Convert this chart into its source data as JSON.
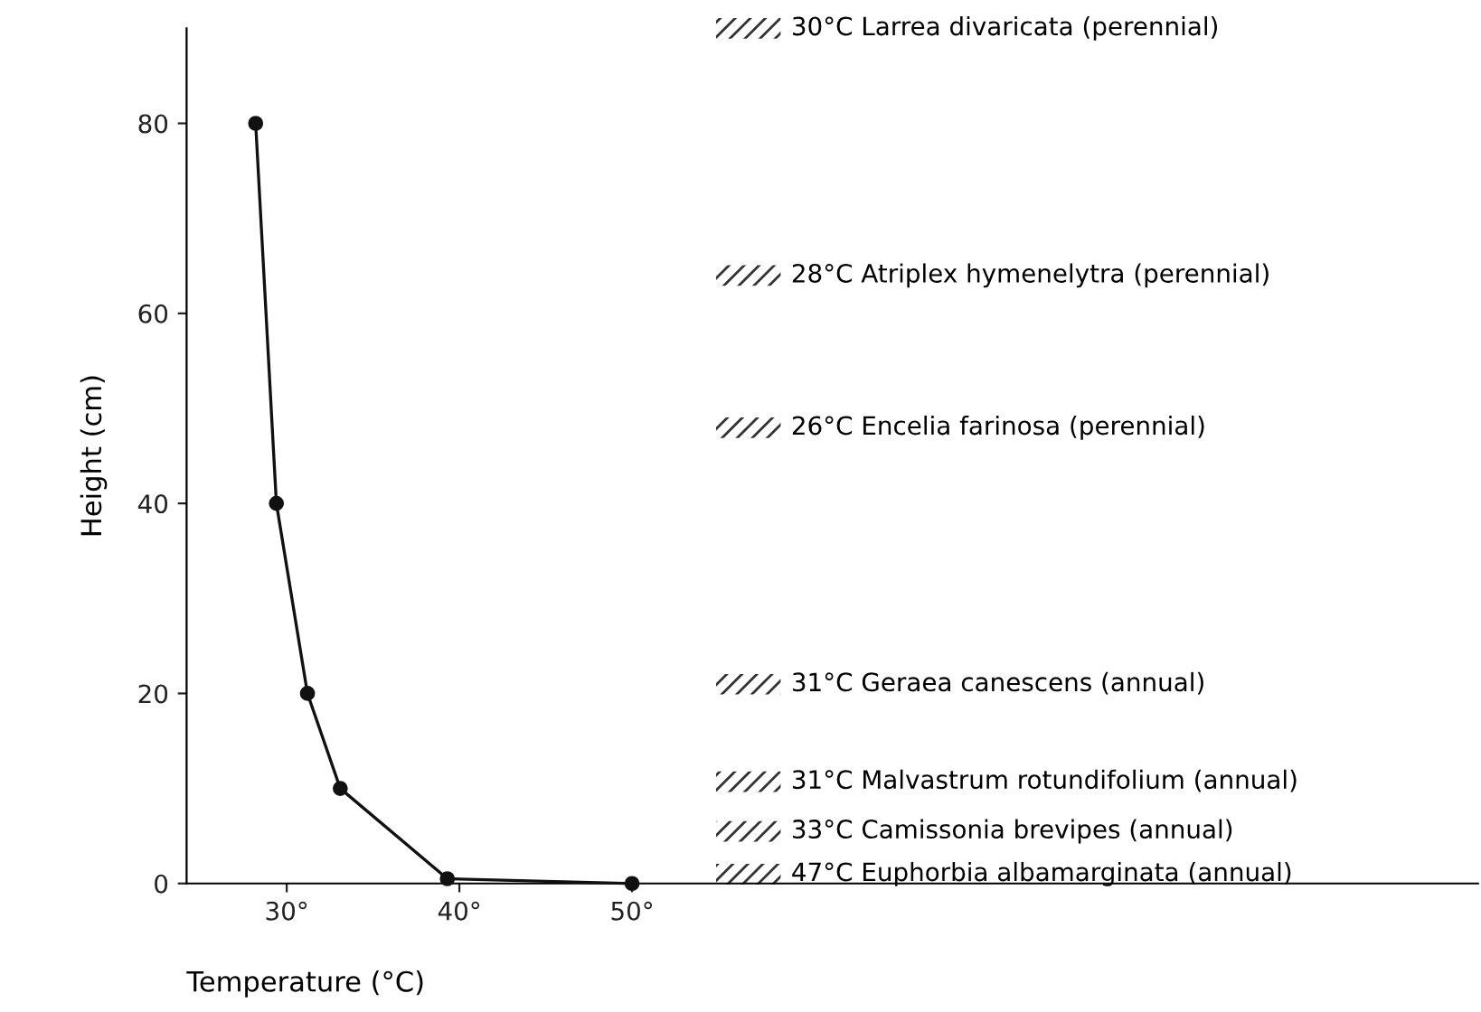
{
  "chart_data": {
    "type": "line",
    "xlabel": "Temperature (°C)",
    "ylabel": "Height (cm)",
    "x": [
      28.2,
      29.4,
      31.2,
      33.1,
      39.3,
      50
    ],
    "series": [
      {
        "color": "#111111",
        "values": [
          80,
          40,
          20,
          10,
          0.5,
          0
        ]
      }
    ],
    "marker": "circle",
    "line_style": "solid",
    "xlim": [
      24.2,
      99
    ],
    "xticks": [
      {
        "value": 30,
        "label": "30°"
      },
      {
        "value": 40,
        "label": "40°"
      },
      {
        "value": 50,
        "label": "50°"
      }
    ],
    "ylim": [
      0,
      90
    ],
    "yticks": [
      0,
      20,
      40,
      60,
      80
    ],
    "grid": false,
    "legend": false,
    "annotations": [
      "30°C Larrea divaricata (perennial)",
      "28°C Atriplex hymenelytra (perennial)",
      "26°C Encelia farinosa (perennial)",
      "31°C Geraea canescens (annual)",
      "31°C Malvastrum rotundifolium (annual)",
      "33°C Camissonia brevipes (annual)",
      "47°C Euphorbia albamarginata (annual)"
    ]
  }
}
